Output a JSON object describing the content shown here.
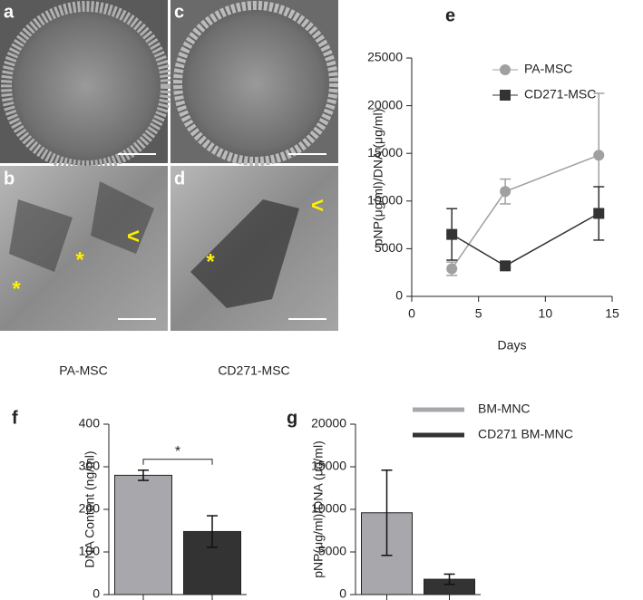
{
  "panels": [
    {
      "letter": "a",
      "marks": []
    },
    {
      "letter": "c",
      "marks": []
    },
    {
      "letter": "b",
      "marks": [
        "*",
        "*",
        "<"
      ]
    },
    {
      "letter": "d",
      "marks": [
        "*",
        "<"
      ]
    }
  ],
  "captions": [
    "PA-MSC",
    "CD271-MSC"
  ],
  "chart_data": [
    {
      "type": "line",
      "letter": "e",
      "xlabel": "Days",
      "ylabel": "pNP(μg/ml)/DNA (μg/ml)",
      "x": [
        3,
        7,
        14
      ],
      "xlim": [
        0,
        15
      ],
      "xticks": [
        0,
        5,
        10,
        15
      ],
      "ylim": [
        0,
        25000
      ],
      "yticks": [
        0,
        5000,
        10000,
        15000,
        20000,
        25000
      ],
      "legend": "upper left",
      "series": [
        {
          "name": "PA-MSC",
          "color": "#a0a0a0",
          "marker": "circle",
          "values": [
            2900,
            11000,
            14800
          ],
          "errors": [
            700,
            1300,
            6500
          ]
        },
        {
          "name": "CD271-MSC",
          "color": "#333333",
          "marker": "square",
          "values": [
            6500,
            3200,
            8700
          ],
          "errors": [
            2700,
            200,
            2800
          ]
        }
      ]
    },
    {
      "type": "bar",
      "letter": "f",
      "ylabel": "DNA Content (ng/ml)",
      "categories": [
        null,
        null
      ],
      "ylim": [
        0,
        400
      ],
      "yticks": [
        0,
        100,
        200,
        300,
        400
      ],
      "series": [
        {
          "color": "#a8a8ac",
          "values": [
            280,
            null
          ],
          "errors": [
            12,
            null
          ]
        },
        {
          "color": "#333333",
          "values": [
            null,
            148
          ],
          "errors": [
            null,
            37
          ]
        }
      ],
      "significance": "*"
    },
    {
      "type": "bar",
      "letter": "g",
      "ylabel": "pNP(μg/ml)/DNA (μg/ml)",
      "categories": [
        null,
        null
      ],
      "ylim": [
        0,
        20000
      ],
      "yticks": [
        0,
        5000,
        10000,
        15000,
        20000
      ],
      "legend": "right",
      "series": [
        {
          "name": "BM-MNC",
          "color": "#a8a8ac",
          "values": [
            9600,
            null
          ],
          "errors": [
            5000,
            null
          ]
        },
        {
          "name": "CD271 BM-MNC",
          "color": "#333333",
          "values": [
            null,
            1800
          ],
          "errors": [
            null,
            600
          ]
        }
      ]
    }
  ]
}
